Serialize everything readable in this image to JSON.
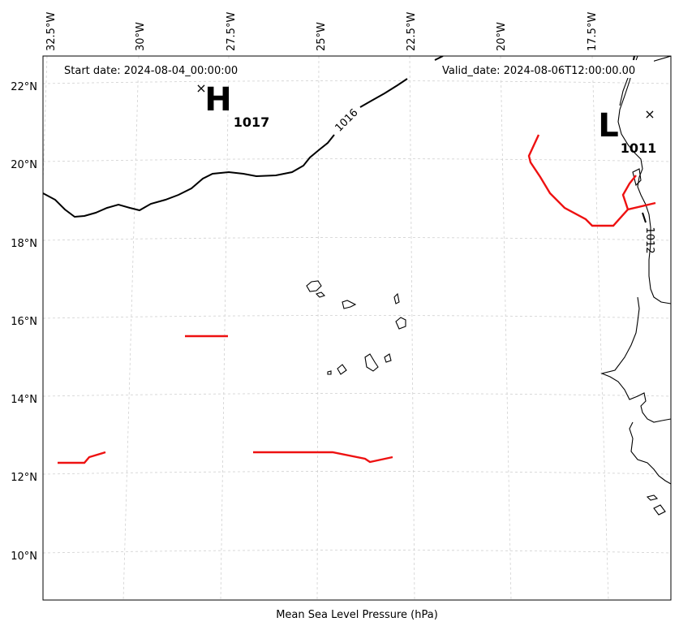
{
  "map": {
    "start_date": "Start date: 2024-08-04_00:00:00",
    "valid_date": "Valid_date: 2024-08-06T12:00:00.00",
    "xlabel": "Mean Sea Level Pressure (hPa)",
    "lon_ticks": [
      "32.5°W",
      "30°W",
      "27.5°W",
      "25°W",
      "22.5°W",
      "20°W",
      "17.5°W"
    ],
    "lat_ticks": [
      "22°N",
      "20°N",
      "18°N",
      "16°N",
      "14°N",
      "12°N",
      "10°N"
    ],
    "high": {
      "letter": "H",
      "value": "1017",
      "marker": "×"
    },
    "low": {
      "letter": "L",
      "value": "1011",
      "marker": "×"
    },
    "contour_labels": [
      "1016",
      "1012"
    ],
    "colors": {
      "isobar": "#000000",
      "front": "#ee1111",
      "grid": "#cccccc",
      "coast": "#000000"
    }
  }
}
